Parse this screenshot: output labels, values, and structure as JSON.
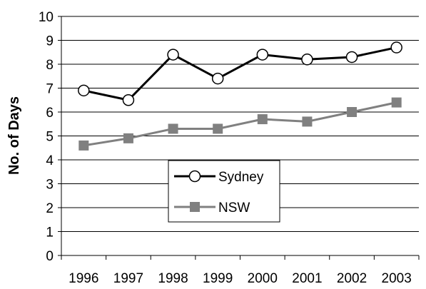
{
  "chart_data": {
    "type": "line",
    "title": "",
    "xlabel": "",
    "ylabel": "No. of Days",
    "categories": [
      "1996",
      "1997",
      "1998",
      "1999",
      "2000",
      "2001",
      "2002",
      "2003"
    ],
    "yticks": [
      "0",
      "1",
      "2",
      "3",
      "4",
      "5",
      "6",
      "7",
      "8",
      "9",
      "10"
    ],
    "ylim": [
      0,
      10
    ],
    "grid": "horizontal",
    "legend": "center-left",
    "series": [
      {
        "name": "Sydney",
        "values": [
          6.9,
          6.5,
          8.4,
          7.4,
          8.4,
          8.2,
          8.3,
          8.7
        ],
        "color": "#000000",
        "marker": "circle-open"
      },
      {
        "name": "NSW",
        "values": [
          4.6,
          4.9,
          5.3,
          5.3,
          5.7,
          5.6,
          6.0,
          6.4
        ],
        "color": "#808080",
        "marker": "square"
      }
    ]
  }
}
